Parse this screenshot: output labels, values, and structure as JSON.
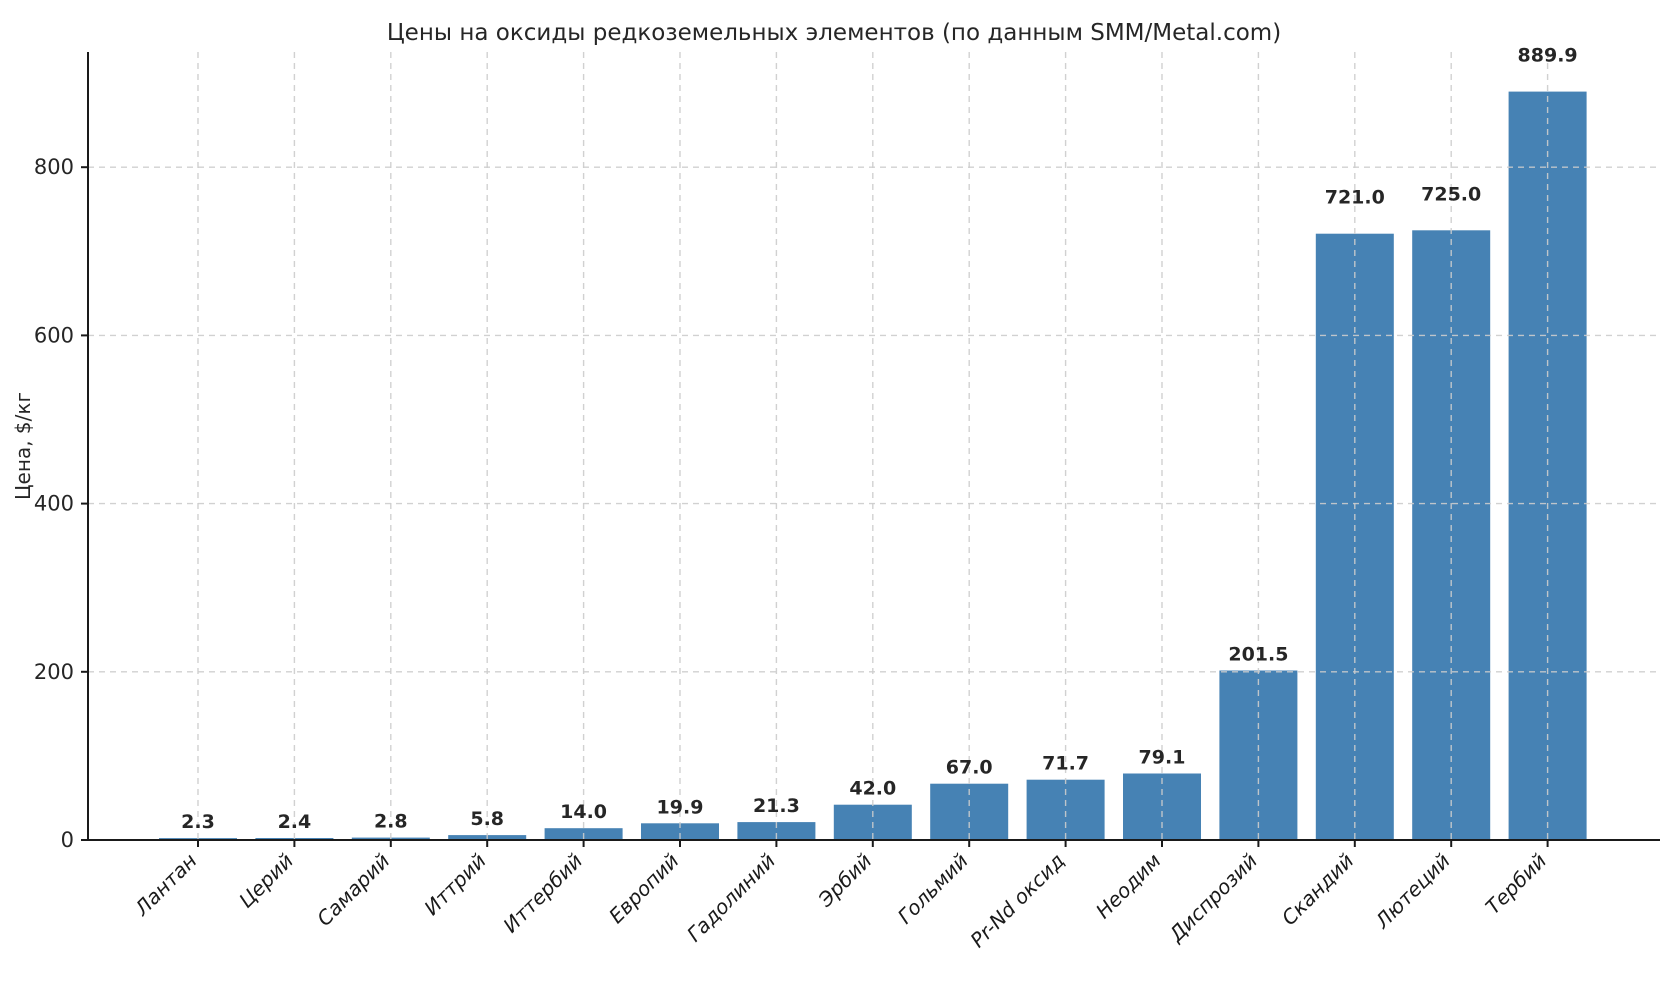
{
  "chart_data": {
    "type": "bar",
    "title": "Цены на оксиды редкоземельных элементов (по данным SMM/Metal.com)",
    "xlabel": "",
    "ylabel": "Цена, $/кг",
    "categories": [
      "Лантан",
      "Церий",
      "Самарий",
      "Иттрий",
      "Иттербий",
      "Европий",
      "Гадолиний",
      "Эрбий",
      "Гольмий",
      "Pr-Nd оксид",
      "Неодим",
      "Диспрозий",
      "Скандий",
      "Лютеций",
      "Тербий"
    ],
    "values": [
      2.3,
      2.4,
      2.8,
      5.8,
      14.0,
      19.9,
      21.3,
      42.0,
      67.0,
      71.7,
      79.1,
      201.5,
      721.0,
      725.0,
      889.9
    ],
    "value_labels": [
      "2.3",
      "2.4",
      "2.8",
      "5.8",
      "14.0",
      "19.9",
      "21.3",
      "42.0",
      "67.0",
      "71.7",
      "79.1",
      "201.5",
      "721.0",
      "725.0",
      "889.9"
    ],
    "yticks": [
      0,
      200,
      400,
      600,
      800
    ],
    "ylim": [
      0,
      937
    ],
    "bar_color": "#4682b4",
    "grid": true,
    "grid_style": "dashed",
    "legend_position": "none"
  }
}
